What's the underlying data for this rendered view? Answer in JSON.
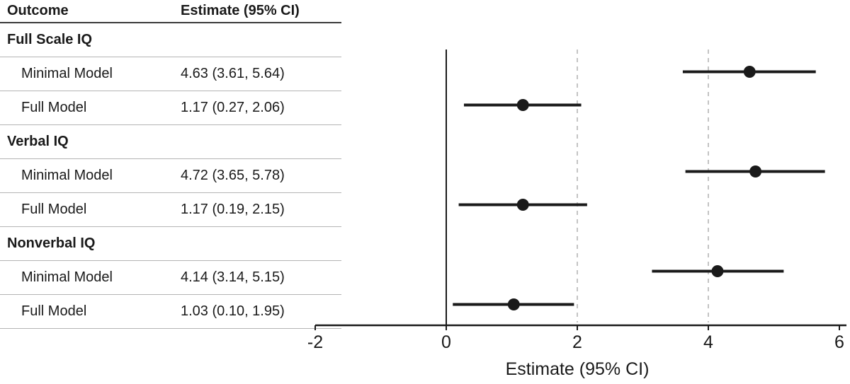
{
  "table": {
    "col_headers": [
      "Outcome",
      "Estimate (95% CI)"
    ],
    "groups": [
      {
        "label": "Full Scale IQ",
        "rows": [
          {
            "label": "Minimal Model",
            "estimate_text": "4.63 (3.61, 5.64)"
          },
          {
            "label": "Full Model",
            "estimate_text": "1.17 (0.27, 2.06)"
          }
        ]
      },
      {
        "label": "Verbal IQ",
        "rows": [
          {
            "label": "Minimal Model",
            "estimate_text": "4.72 (3.65, 5.78)"
          },
          {
            "label": "Full Model",
            "estimate_text": "1.17 (0.19, 2.15)"
          }
        ]
      },
      {
        "label": "Nonverbal IQ",
        "rows": [
          {
            "label": "Minimal Model",
            "estimate_text": "4.14 (3.14, 5.15)"
          },
          {
            "label": "Full Model",
            "estimate_text": "1.03 (0.10, 1.95)"
          }
        ]
      }
    ]
  },
  "chart_data": {
    "type": "scatter",
    "subtype": "forest-plot",
    "xlabel": "Estimate (95% CI)",
    "xlim": [
      -2,
      6
    ],
    "xticks": [
      -2,
      0,
      2,
      4,
      6
    ],
    "reference_line": 0,
    "dashed_gridlines": [
      2,
      4
    ],
    "legend": "none",
    "series": [
      {
        "group": "Full Scale IQ",
        "model": "Minimal Model",
        "estimate": 4.63,
        "ci_low": 3.61,
        "ci_high": 5.64
      },
      {
        "group": "Full Scale IQ",
        "model": "Full Model",
        "estimate": 1.17,
        "ci_low": 0.27,
        "ci_high": 2.06
      },
      {
        "group": "Verbal IQ",
        "model": "Minimal Model",
        "estimate": 4.72,
        "ci_low": 3.65,
        "ci_high": 5.78
      },
      {
        "group": "Verbal IQ",
        "model": "Full Model",
        "estimate": 1.17,
        "ci_low": 0.19,
        "ci_high": 2.15
      },
      {
        "group": "Nonverbal IQ",
        "model": "Minimal Model",
        "estimate": 4.14,
        "ci_low": 3.14,
        "ci_high": 5.15
      },
      {
        "group": "Nonverbal IQ",
        "model": "Full Model",
        "estimate": 1.03,
        "ci_low": 0.1,
        "ci_high": 1.95
      }
    ]
  },
  "colors": {
    "ink": "#1a1a1a",
    "grid": "#b0b0b0",
    "rule_light": "#b4b4b4",
    "rule_dark": "#3a3a3a"
  }
}
